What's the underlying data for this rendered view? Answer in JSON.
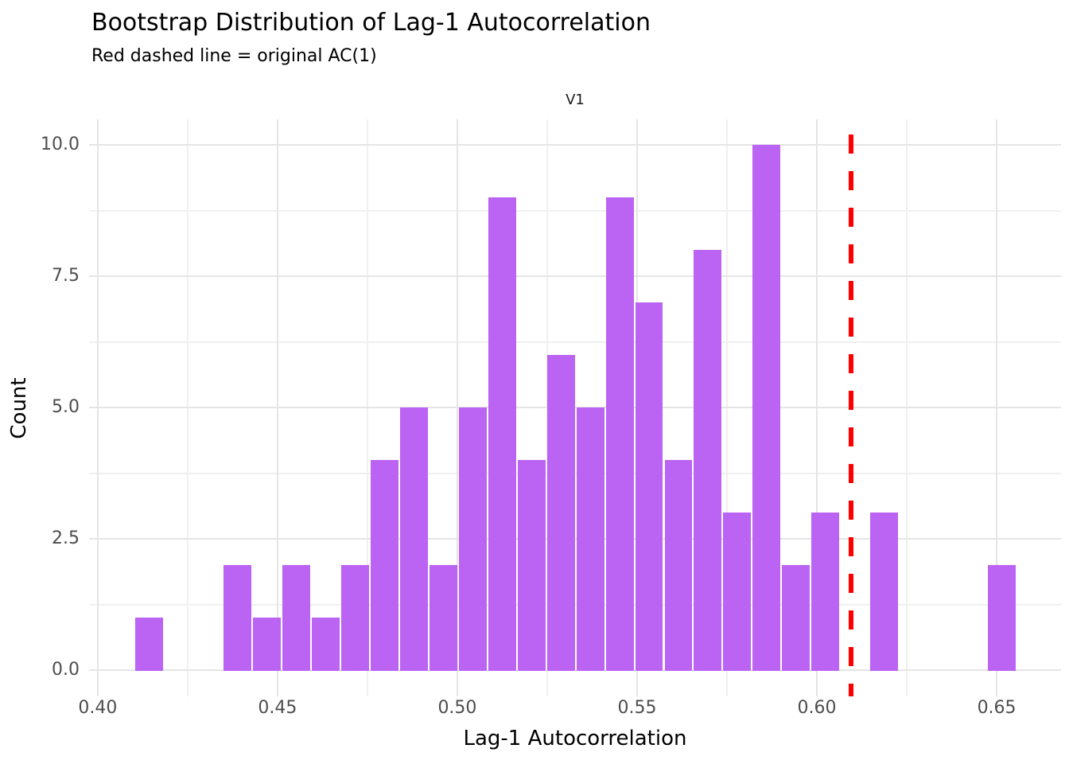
{
  "title": "Bootstrap Distribution of Lag-1 Autocorrelation",
  "subtitle": "Red dashed line = original AC(1)",
  "facet_label": "V1",
  "chart_data": {
    "type": "bar",
    "subtype": "histogram",
    "title": "Bootstrap Distribution of Lag-1 Autocorrelation",
    "subtitle": "Red dashed line = original AC(1)",
    "facet": "V1",
    "xlabel": "Lag-1 Autocorrelation",
    "ylabel": "Count",
    "bin_start": 0.4103,
    "bin_width": 0.008173,
    "counts": [
      1,
      0,
      0,
      2,
      1,
      2,
      1,
      2,
      4,
      5,
      2,
      5,
      9,
      4,
      6,
      5,
      9,
      7,
      4,
      8,
      3,
      10,
      2,
      3,
      0,
      3,
      0,
      0,
      0,
      2
    ],
    "total_count": 100,
    "vline_value": 0.6095,
    "vline_meaning": "original AC(1)",
    "xlim": [
      0.3976,
      0.6679
    ],
    "ylim": [
      -0.5,
      10.49
    ],
    "x_major_ticks": [
      0.4,
      0.45,
      0.5,
      0.55,
      0.6,
      0.65
    ],
    "x_tick_labels": [
      "0.40",
      "0.45",
      "0.50",
      "0.55",
      "0.60",
      "0.65"
    ],
    "x_minor_ticks": [
      0.425,
      0.475,
      0.525,
      0.575,
      0.625
    ],
    "y_major_ticks": [
      0,
      2.5,
      5,
      7.5,
      10
    ],
    "y_tick_labels": [
      "0.0",
      "2.5",
      "5.0",
      "7.5",
      "10.0"
    ],
    "y_minor_ticks": [
      1.25,
      3.75,
      6.25,
      8.75
    ],
    "grid": true,
    "legend_position": "none"
  },
  "colors": {
    "bar_fill": "#BB63F3",
    "bar_outline": "#FFFFFF",
    "vline": "#FF0000",
    "grid_major": "#E5E5E5",
    "grid_minor": "#F0F0F0",
    "tick_label": "#4D4D4D",
    "text": "#000000",
    "background": "#FFFFFF"
  }
}
